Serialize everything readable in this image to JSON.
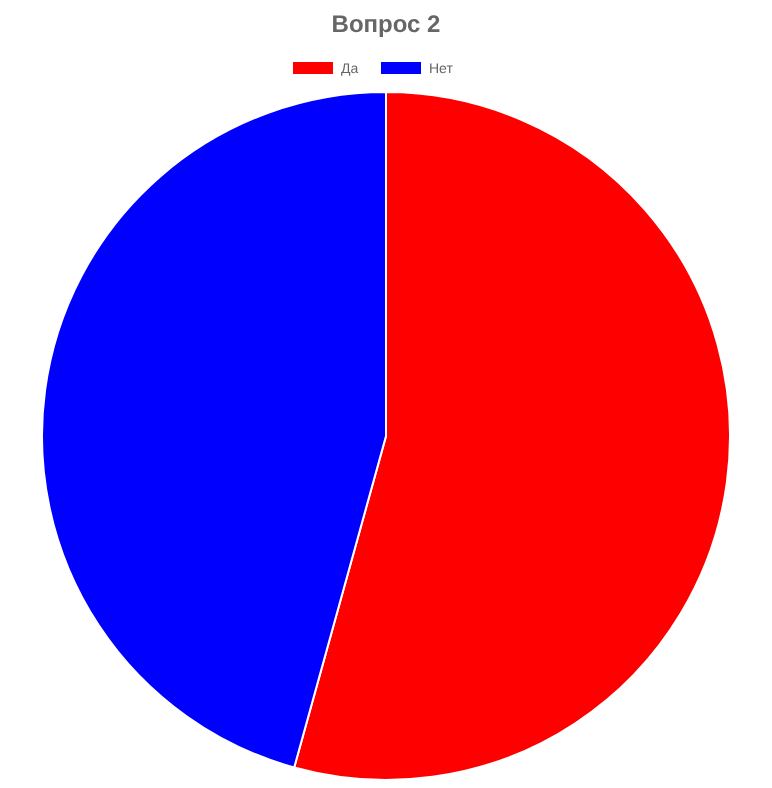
{
  "chart_data": {
    "type": "pie",
    "title": "Вопрос 2",
    "categories": [
      "Да",
      "Нет"
    ],
    "values": [
      54.3,
      45.7
    ],
    "colors": [
      "#ff0000",
      "#0000ff"
    ],
    "legend": "top"
  }
}
